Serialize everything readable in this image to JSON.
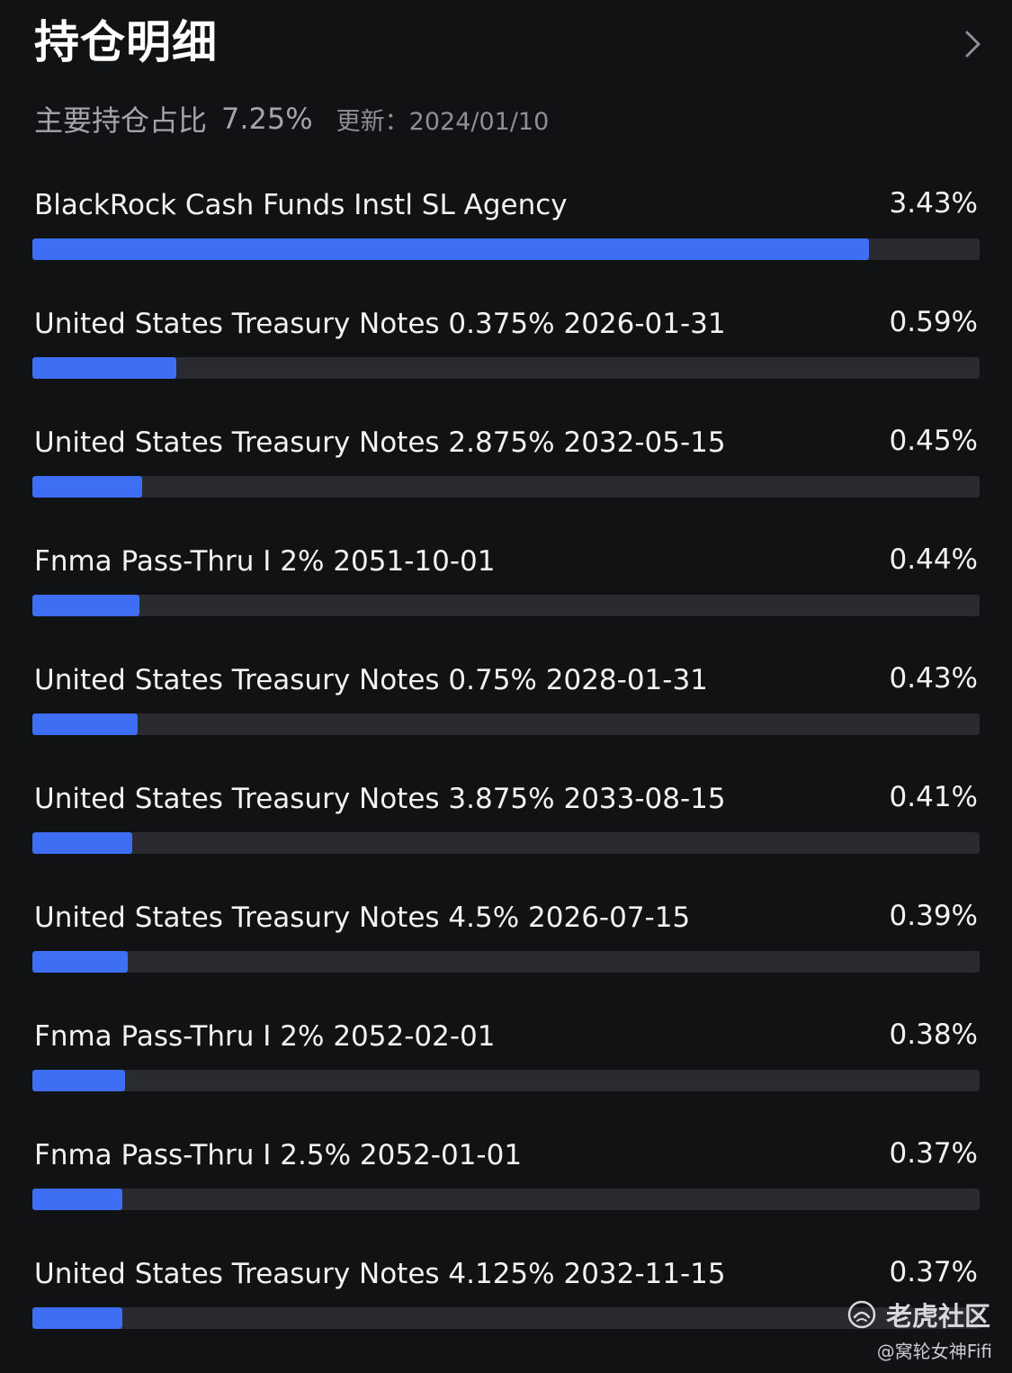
{
  "header": {
    "title": "持仓明细",
    "more_icon": "chevron-right-icon"
  },
  "summary": {
    "label": "主要持仓占比",
    "percent": "7.25%",
    "updated": "更新：2024/01/10"
  },
  "holdings": [
    {
      "name": "BlackRock Cash Funds Instl SL Agency",
      "value": "3.43%",
      "weight": 3.43
    },
    {
      "name": "United States Treasury Notes 0.375% 2026-01-31",
      "value": "0.59%",
      "weight": 0.59
    },
    {
      "name": "United States Treasury Notes 2.875% 2032-05-15",
      "value": "0.45%",
      "weight": 0.45
    },
    {
      "name": "Fnma Pass-Thru I 2% 2051-10-01",
      "value": "0.44%",
      "weight": 0.44
    },
    {
      "name": "United States Treasury Notes 0.75% 2028-01-31",
      "value": "0.43%",
      "weight": 0.43
    },
    {
      "name": "United States Treasury Notes 3.875% 2033-08-15",
      "value": "0.41%",
      "weight": 0.41
    },
    {
      "name": "United States Treasury Notes 4.5% 2026-07-15",
      "value": "0.39%",
      "weight": 0.39
    },
    {
      "name": "Fnma Pass-Thru I 2% 2052-02-01",
      "value": "0.38%",
      "weight": 0.38
    },
    {
      "name": "Fnma Pass-Thru I 2.5% 2052-01-01",
      "value": "0.37%",
      "weight": 0.37
    },
    {
      "name": "United States Treasury Notes 4.125% 2032-11-15",
      "value": "0.37%",
      "weight": 0.37
    }
  ],
  "colors": {
    "background": "#111214",
    "bar_fill": "#3d6ef3",
    "bar_track": "#2a2b30"
  },
  "watermark": {
    "brand": "老虎社区",
    "author": "@窝轮女神Fifi"
  }
}
